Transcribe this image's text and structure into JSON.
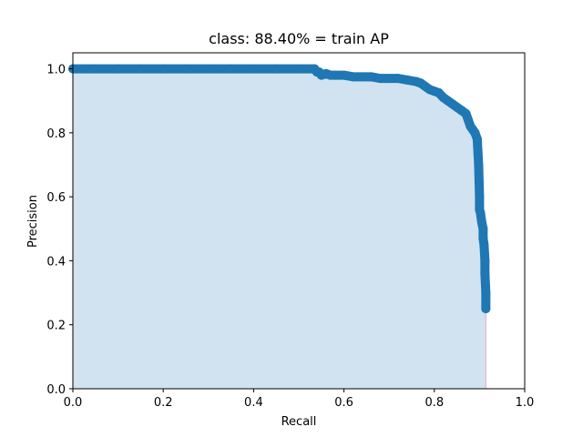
{
  "chart_data": {
    "type": "area",
    "title": "class: 88.40% = train AP",
    "xlabel": "Recall",
    "ylabel": "Precision",
    "xlim": [
      0,
      1
    ],
    "ylim": [
      0,
      1.05
    ],
    "xticks": [
      "0.0",
      "0.2",
      "0.4",
      "0.6",
      "0.8",
      "1.0"
    ],
    "yticks": [
      "0.0",
      "0.2",
      "0.4",
      "0.6",
      "0.8",
      "1.0"
    ],
    "grid": false,
    "series": [
      {
        "color": "#1f77b4",
        "fill_color": "#d1e3f0",
        "x": [
          0.0,
          0.05,
          0.1,
          0.15,
          0.2,
          0.25,
          0.3,
          0.35,
          0.4,
          0.45,
          0.5,
          0.535,
          0.54,
          0.545,
          0.55,
          0.56,
          0.57,
          0.58,
          0.6,
          0.62,
          0.64,
          0.66,
          0.68,
          0.7,
          0.72,
          0.74,
          0.76,
          0.77,
          0.78,
          0.79,
          0.8,
          0.81,
          0.82,
          0.83,
          0.84,
          0.85,
          0.86,
          0.87,
          0.875,
          0.88,
          0.885,
          0.89,
          0.895,
          0.898,
          0.9,
          0.9,
          0.9,
          0.902,
          0.905,
          0.908,
          0.908,
          0.91,
          0.912,
          0.912,
          0.914,
          0.914
        ],
        "y": [
          1.0,
          1.0,
          1.0,
          1.0,
          1.0,
          1.0,
          1.0,
          1.0,
          1.0,
          1.0,
          1.0,
          1.0,
          0.99,
          0.99,
          0.98,
          0.985,
          0.98,
          0.98,
          0.98,
          0.975,
          0.975,
          0.975,
          0.97,
          0.97,
          0.97,
          0.965,
          0.96,
          0.955,
          0.945,
          0.935,
          0.93,
          0.925,
          0.91,
          0.9,
          0.89,
          0.88,
          0.87,
          0.86,
          0.84,
          0.82,
          0.81,
          0.8,
          0.78,
          0.7,
          0.6,
          0.57,
          0.56,
          0.55,
          0.52,
          0.5,
          0.47,
          0.45,
          0.4,
          0.36,
          0.3,
          0.25
        ]
      }
    ]
  }
}
